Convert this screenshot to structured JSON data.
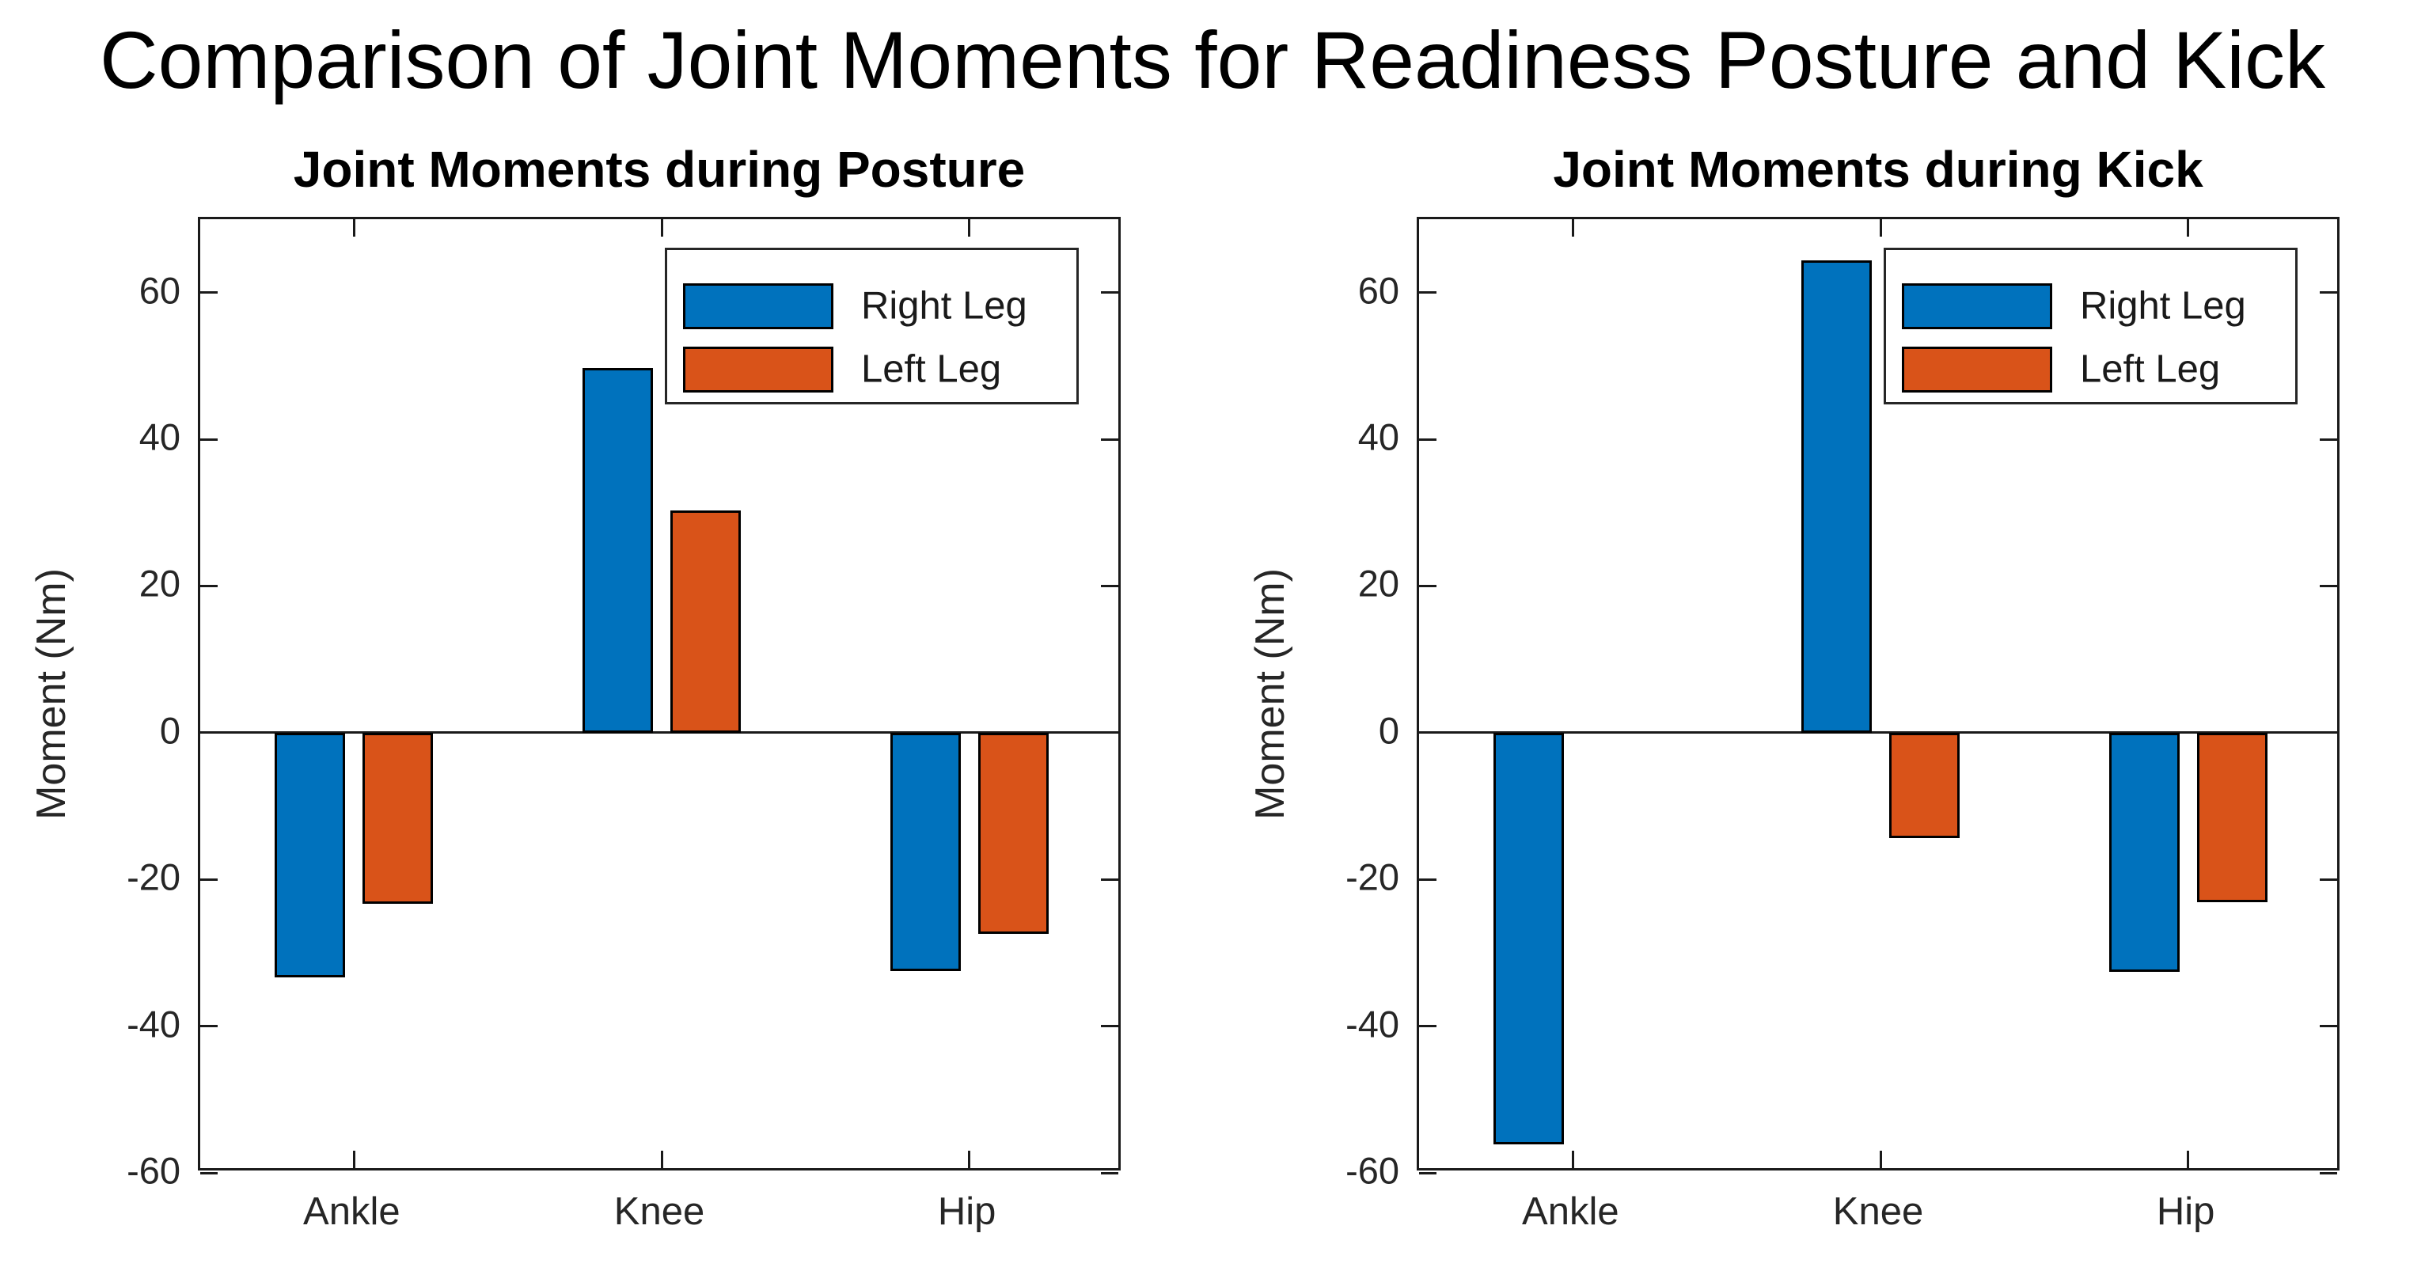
{
  "figure": {
    "title": "Comparison of Joint Moments for Readiness Posture and Kick"
  },
  "colors": {
    "right_leg": "#0072BD",
    "left_leg": "#D95319",
    "bar_edge": "#000000",
    "axis": "#1a1a1a",
    "tick_text": "#262626",
    "background": "#ffffff"
  },
  "legend": {
    "items": [
      "Right Leg",
      "Left Leg"
    ]
  },
  "chart_data": [
    {
      "type": "bar",
      "title": "Joint Moments during Posture",
      "categories": [
        "Ankle",
        "Knee",
        "Hip"
      ],
      "series": [
        {
          "name": "Right Leg",
          "color": "#0072BD",
          "values": [
            -33.4,
            49.7,
            -32.5
          ]
        },
        {
          "name": "Left Leg",
          "color": "#D95319",
          "values": [
            -23.3,
            30.3,
            -27.4
          ]
        }
      ],
      "xlabel": "",
      "ylabel": "Moment (Nm)",
      "ylim": [
        -60,
        70
      ],
      "yticks": [
        -60,
        -40,
        -20,
        0,
        20,
        40,
        60
      ],
      "grid": false,
      "box": true,
      "tick_direction": "in",
      "legend_position": "northeast"
    },
    {
      "type": "bar",
      "title": "Joint Moments during Kick",
      "categories": [
        "Ankle",
        "Knee",
        "Hip"
      ],
      "series": [
        {
          "name": "Right Leg",
          "color": "#0072BD",
          "values": [
            -56.1,
            64.4,
            -32.6
          ]
        },
        {
          "name": "Left Leg",
          "color": "#D95319",
          "values": [
            0,
            -14.4,
            -23.1
          ]
        }
      ],
      "xlabel": "",
      "ylabel": "Moment (Nm)",
      "ylim": [
        -60,
        70
      ],
      "yticks": [
        -60,
        -40,
        -20,
        0,
        20,
        40,
        60
      ],
      "grid": false,
      "box": true,
      "tick_direction": "in",
      "legend_position": "northeast"
    }
  ]
}
